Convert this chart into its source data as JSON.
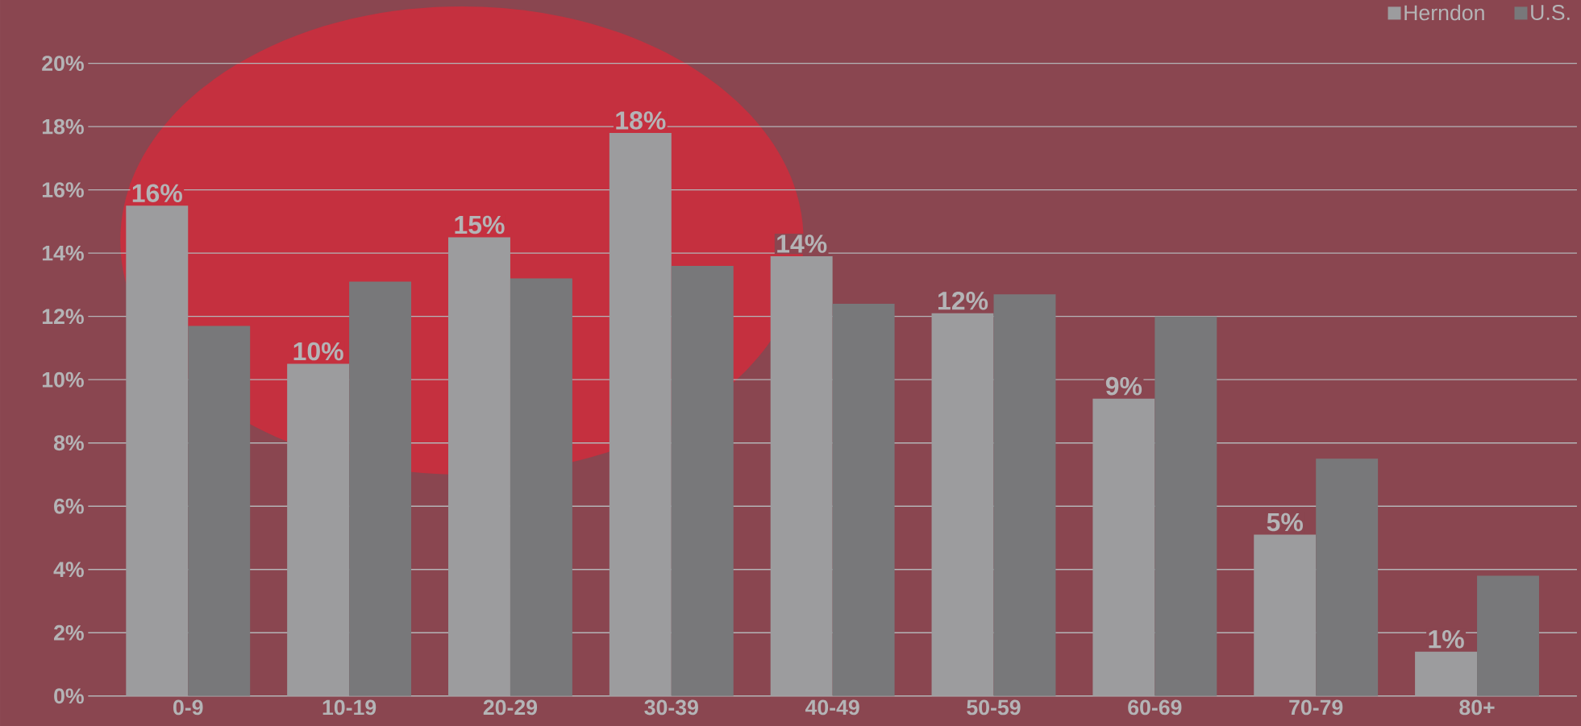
{
  "chart_data": {
    "type": "bar",
    "categories": [
      "0-9",
      "10-19",
      "20-29",
      "30-39",
      "40-49",
      "50-59",
      "60-69",
      "70-79",
      "80+"
    ],
    "series": [
      {
        "name": "Herndon",
        "color": "#9c9c9e",
        "values": [
          15.5,
          10.5,
          14.5,
          17.8,
          13.9,
          12.1,
          9.4,
          5.1,
          1.4
        ],
        "value_labels": [
          "16%",
          "10%",
          "15%",
          "18%",
          "14%",
          "12%",
          "9%",
          "5%",
          "1%"
        ]
      },
      {
        "name": "U.S.",
        "color": "#78787a",
        "values": [
          11.7,
          13.1,
          13.2,
          13.6,
          12.4,
          12.7,
          12.0,
          7.5,
          3.8
        ]
      }
    ],
    "ylim": [
      0,
      22
    ],
    "yticks": [
      {
        "value": 0,
        "label": "0%"
      },
      {
        "value": 2,
        "label": "2%"
      },
      {
        "value": 4,
        "label": "4%"
      },
      {
        "value": 6,
        "label": "6%"
      },
      {
        "value": 8,
        "label": "8%"
      },
      {
        "value": 10,
        "label": "10%"
      },
      {
        "value": 12,
        "label": "12%"
      },
      {
        "value": 14,
        "label": "14%"
      },
      {
        "value": 16,
        "label": "16%"
      },
      {
        "value": 18,
        "label": "18%"
      },
      {
        "value": 20,
        "label": "20%"
      }
    ],
    "grid": "y",
    "legend": "top right"
  }
}
